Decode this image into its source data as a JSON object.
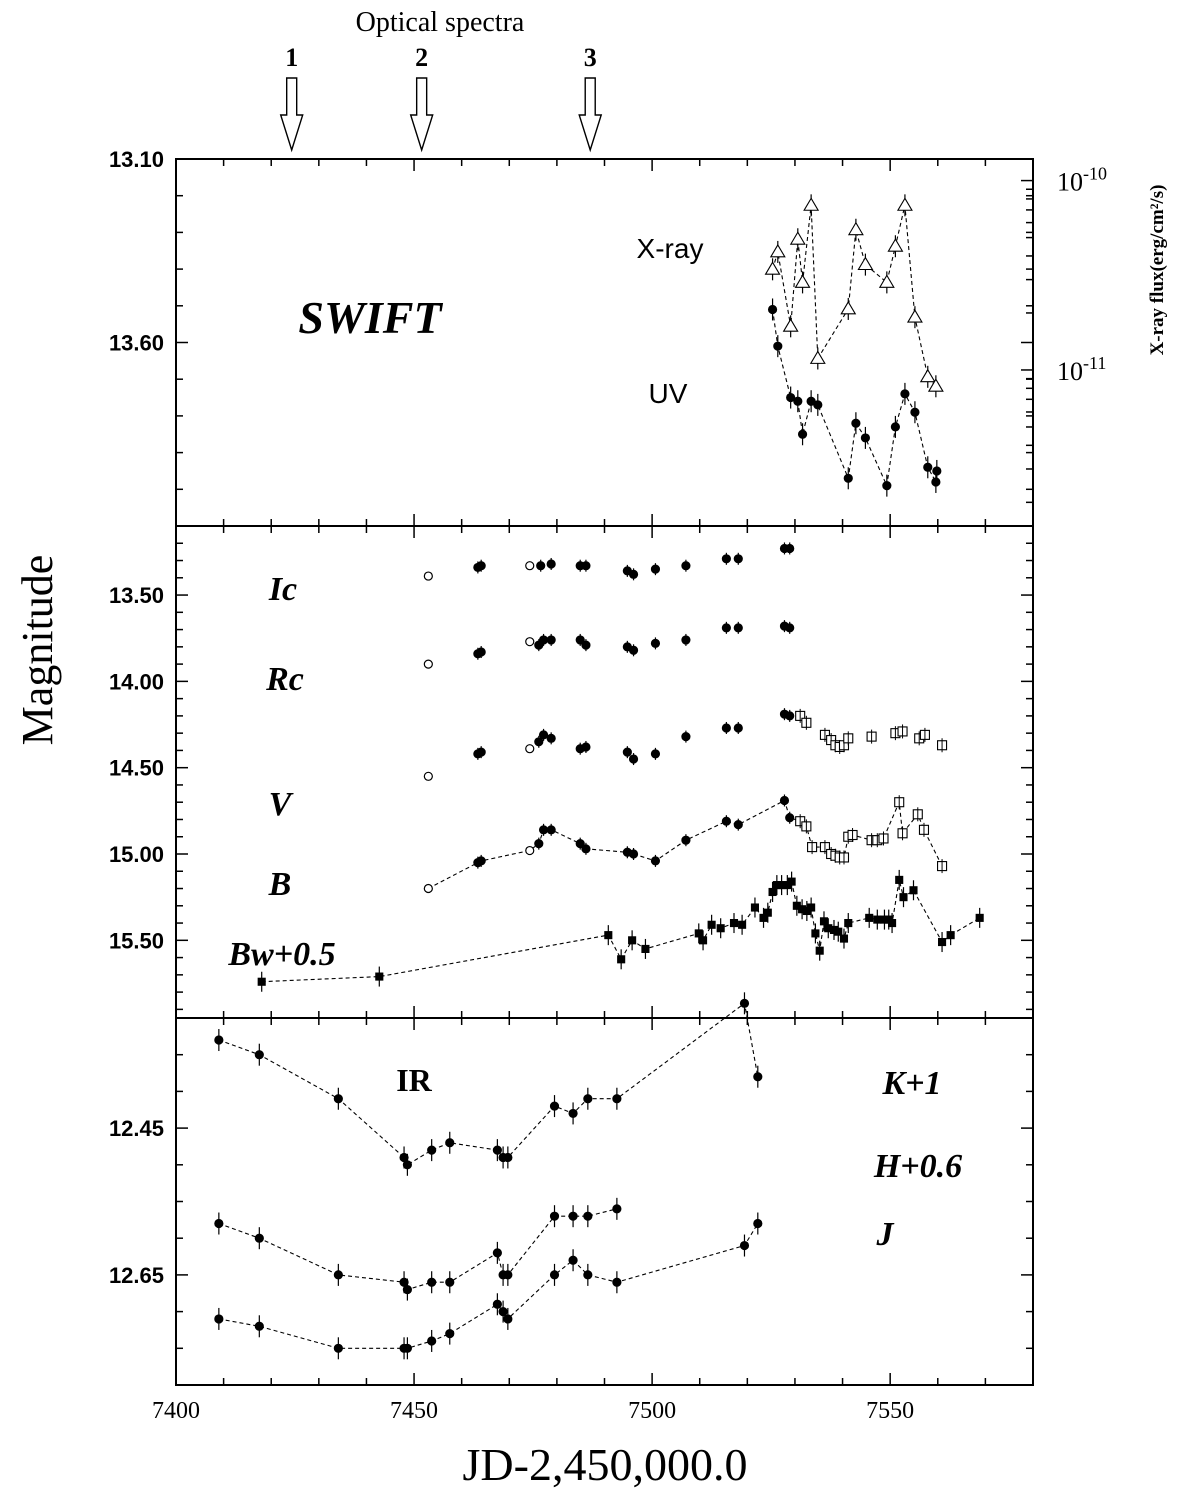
{
  "figure": {
    "top_title": "Optical spectra",
    "ylabel": "Magnitude",
    "xlabel": "JD-2,450,000.0",
    "right_ylabel": "X-ray flux(erg/cm²/s)"
  },
  "chart_data": [
    {
      "type": "scatter",
      "panel": "top",
      "label": "SWIFT",
      "xlim": [
        7400,
        7580
      ],
      "ylim_left": [
        13.1,
        14.1
      ],
      "left_yticks": [
        13.1,
        13.6
      ],
      "left_ytick_labels": [
        "13.10",
        "13.60"
      ],
      "right_axis": {
        "scale": "log",
        "range": [
          1.5e-12,
          1.3e-10
        ],
        "ticks": [
          1e-10,
          1e-11
        ],
        "tick_labels": [
          "10-10",
          "10-11"
        ]
      },
      "series": [
        {
          "name": "X-ray",
          "axis": "right",
          "marker": "open-triangle",
          "connected": true,
          "x": [
            7525.3,
            7526.4,
            7529.1,
            7530.6,
            7531.6,
            7533.4,
            7534.8,
            7541.2,
            7542.8,
            7544.8,
            7549.3,
            7551.1,
            7553.1,
            7555.2,
            7557.9,
            7559.6
          ],
          "y": [
            3.4e-11,
            4.2e-11,
            1.7e-11,
            4.9e-11,
            2.9e-11,
            7.4e-11,
            1.15e-11,
            2.1e-11,
            5.5e-11,
            3.6e-11,
            2.9e-11,
            4.5e-11,
            7.4e-11,
            1.9e-11,
            9.2e-12,
            8.2e-12
          ]
        },
        {
          "name": "UV",
          "axis": "left",
          "marker": "filled-circle",
          "connected": true,
          "x": [
            7525.3,
            7526.4,
            7529.1,
            7530.6,
            7531.6,
            7533.4,
            7534.8,
            7541.2,
            7542.8,
            7544.8,
            7549.3,
            7551.1,
            7553.1,
            7555.2,
            7557.9,
            7559.6,
            7559.8
          ],
          "y": [
            13.51,
            13.61,
            13.75,
            13.76,
            13.85,
            13.76,
            13.77,
            13.97,
            13.82,
            13.86,
            13.99,
            13.83,
            13.74,
            13.79,
            13.94,
            13.98,
            13.95
          ]
        }
      ]
    },
    {
      "type": "scatter",
      "panel": "middle",
      "xlim": [
        7400,
        7580
      ],
      "ylim": [
        13.1,
        15.95
      ],
      "yticks": [
        13.5,
        14.0,
        14.5,
        15.0,
        15.5
      ],
      "ytick_labels": [
        "13.50",
        "14.00",
        "14.50",
        "15.00",
        "15.50"
      ],
      "series": [
        {
          "name": "Ic",
          "marker": "filled-circle",
          "connected": false,
          "open_x": [
            7453,
            7474.3
          ],
          "open_y": [
            13.39,
            13.33
          ],
          "x": [
            7463.4,
            7464.1,
            7476.6,
            7478.8,
            7484.9,
            7486.1,
            7494.8,
            7496.1,
            7500.7,
            7507.1,
            7515.6,
            7518.1,
            7527.8,
            7528.9
          ],
          "y": [
            13.34,
            13.33,
            13.33,
            13.32,
            13.33,
            13.33,
            13.36,
            13.38,
            13.35,
            13.33,
            13.29,
            13.29,
            13.23,
            13.23
          ]
        },
        {
          "name": "Rc",
          "marker": "filled-circle",
          "connected": false,
          "open_x": [
            7453,
            7474.3
          ],
          "open_y": [
            13.9,
            13.77
          ],
          "x": [
            7463.4,
            7464.1,
            7476.2,
            7477.2,
            7478.8,
            7484.9,
            7486.1,
            7494.8,
            7496.1,
            7500.7,
            7507.1,
            7515.6,
            7518.1,
            7527.8,
            7528.9
          ],
          "y": [
            13.84,
            13.83,
            13.79,
            13.76,
            13.76,
            13.76,
            13.79,
            13.8,
            13.82,
            13.78,
            13.76,
            13.69,
            13.69,
            13.68,
            13.69
          ]
        },
        {
          "name": "V",
          "marker": "filled-circle",
          "connected": false,
          "open_x": [
            7453,
            7474.3
          ],
          "open_y": [
            14.55,
            14.39
          ],
          "x": [
            7463.4,
            7464.1,
            7476.2,
            7477.2,
            7478.8,
            7484.9,
            7486.1,
            7494.8,
            7496.1,
            7500.7,
            7507.1,
            7515.6,
            7518.1,
            7527.8,
            7528.9
          ],
          "y": [
            14.42,
            14.41,
            14.35,
            14.31,
            14.33,
            14.39,
            14.38,
            14.41,
            14.45,
            14.42,
            14.32,
            14.27,
            14.27,
            14.19,
            14.2
          ],
          "open_square_x": [
            7531.1,
            7532.4,
            7536.3,
            7537.6,
            7538.5,
            7539.4,
            7540.3,
            7541.2,
            7546.1,
            7551.1,
            7552.6,
            7556.1,
            7557.3,
            7560.9
          ],
          "open_square_y": [
            14.2,
            14.24,
            14.31,
            14.34,
            14.37,
            14.38,
            14.37,
            14.33,
            14.32,
            14.3,
            14.29,
            14.33,
            14.31,
            14.37
          ]
        },
        {
          "name": "B",
          "marker": "filled-circle",
          "connected": true,
          "open_x": [
            7453,
            7474.3
          ],
          "open_y": [
            15.2,
            14.98
          ],
          "x": [
            7463.4,
            7464.1,
            7476.2,
            7477.2,
            7478.8,
            7484.9,
            7486.1,
            7494.8,
            7496.1,
            7500.7,
            7507.1,
            7515.6,
            7518.1,
            7527.8,
            7528.9
          ],
          "y": [
            15.05,
            15.04,
            14.94,
            14.86,
            14.86,
            14.94,
            14.97,
            14.99,
            15.0,
            15.04,
            14.92,
            14.81,
            14.83,
            14.69,
            14.79
          ],
          "open_square_x": [
            7531.1,
            7532.4,
            7533.6,
            7536.3,
            7537.6,
            7538.5,
            7539.4,
            7540.3,
            7541.2,
            7542.1,
            7546.1,
            7547.3,
            7548.6,
            7551.9,
            7552.6,
            7555.8,
            7557.1,
            7560.9
          ],
          "open_square_y": [
            14.81,
            14.84,
            14.96,
            14.96,
            15.0,
            15.01,
            15.02,
            15.02,
            14.9,
            14.89,
            14.92,
            14.92,
            14.91,
            14.7,
            14.88,
            14.77,
            14.86,
            15.07
          ]
        },
        {
          "name": "Bw+0.5",
          "marker": "filled-square",
          "connected": true,
          "x": [
            7418,
            7442.7,
            7490.8,
            7493.5,
            7495.8,
            7498.6,
            7509.8,
            7510.7,
            7512.5,
            7514.4,
            7517.2,
            7518.9,
            7521.6,
            7523.4,
            7524.3,
            7525.3,
            7526.2,
            7527.2,
            7528.4,
            7529.3,
            7530.4,
            7531.5,
            7532.5,
            7533.4,
            7534.3,
            7535.2,
            7536.1,
            7537.0,
            7538.2,
            7539.1,
            7540.3,
            7541.2,
            7545.6,
            7547.3,
            7548.8,
            7549.7,
            7550.4,
            7551.9,
            7552.8,
            7554.9,
            7560.9,
            7562.7,
            7568.8
          ],
          "y": [
            15.74,
            15.71,
            15.47,
            15.61,
            15.5,
            15.55,
            15.46,
            15.5,
            15.41,
            15.43,
            15.4,
            15.41,
            15.31,
            15.37,
            15.34,
            15.22,
            15.18,
            15.18,
            15.18,
            15.16,
            15.3,
            15.32,
            15.33,
            15.31,
            15.46,
            15.56,
            15.39,
            15.43,
            15.44,
            15.45,
            15.49,
            15.4,
            15.37,
            15.38,
            15.38,
            15.38,
            15.4,
            15.15,
            15.25,
            15.21,
            15.51,
            15.47,
            15.37
          ]
        }
      ]
    },
    {
      "type": "scatter",
      "panel": "bottom",
      "label": "IR",
      "xlim": [
        7400,
        7580
      ],
      "ylim": [
        12.3,
        12.8
      ],
      "yticks": [
        12.45,
        12.65
      ],
      "ytick_labels": [
        "12.45",
        "12.65"
      ],
      "series": [
        {
          "name": "K+1",
          "marker": "filled-circle",
          "connected": true,
          "x": [
            7409,
            7417.5,
            7434.1,
            7447.9,
            7448.6,
            7453.7,
            7457.5,
            7467.5,
            7468.7,
            7469.7,
            7479.5,
            7483.4,
            7486.5,
            7492.6,
            7519.4,
            7522.2
          ],
          "y": [
            12.33,
            12.35,
            12.41,
            12.49,
            12.5,
            12.48,
            12.47,
            12.48,
            12.49,
            12.49,
            12.42,
            12.43,
            12.41,
            12.41,
            12.28,
            12.38
          ]
        },
        {
          "name": "H+0.6",
          "marker": "filled-circle",
          "connected": true,
          "x": [
            7409,
            7417.5,
            7434.1,
            7447.9,
            7448.6,
            7453.7,
            7457.5,
            7467.5,
            7468.7,
            7469.7,
            7479.5,
            7483.4,
            7486.5,
            7492.6
          ],
          "y": [
            12.58,
            12.6,
            12.65,
            12.66,
            12.67,
            12.66,
            12.66,
            12.62,
            12.65,
            12.65,
            12.57,
            12.57,
            12.57,
            12.56
          ]
        },
        {
          "name": "J",
          "marker": "filled-circle",
          "connected": true,
          "x": [
            7409,
            7417.5,
            7434.1,
            7447.9,
            7448.6,
            7453.7,
            7457.5,
            7467.5,
            7468.7,
            7469.7,
            7479.5,
            7483.4,
            7486.5,
            7492.6,
            7519.4,
            7522.2
          ],
          "y": [
            12.71,
            12.72,
            12.75,
            12.75,
            12.75,
            12.74,
            12.73,
            12.69,
            12.7,
            12.71,
            12.65,
            12.63,
            12.65,
            12.66,
            12.61,
            12.58
          ]
        }
      ]
    }
  ],
  "annotations": {
    "arrows": [
      {
        "label": "1",
        "x": 7424.3
      },
      {
        "label": "2",
        "x": 7451.6
      },
      {
        "label": "3",
        "x": 7487.0
      }
    ]
  },
  "x_axis": {
    "ticks": [
      7400,
      7450,
      7500,
      7550
    ],
    "tick_labels": [
      "7400",
      "7450",
      "7500",
      "7550"
    ]
  }
}
